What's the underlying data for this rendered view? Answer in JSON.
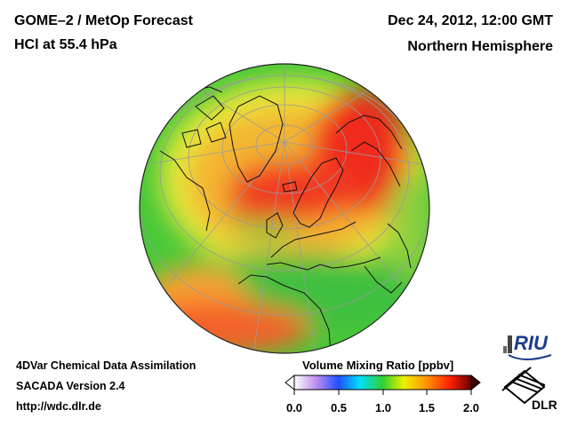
{
  "header": {
    "title": "GOME–2 / MetOp Forecast",
    "subtitle": "HCl at 55.4 hPa",
    "datetime": "Dec 24, 2012, 12:00 GMT",
    "region": "Northern Hemisphere"
  },
  "footer": {
    "line1": "4DVar Chemical Data Assimilation",
    "line2": "SACADA Version 2.4",
    "url": "http://wdc.dlr.de"
  },
  "colorbar": {
    "label": "Volume Mixing Ratio [ppbv]",
    "ticks": [
      "0.0",
      "0.5",
      "1.0",
      "1.5",
      "2.0"
    ],
    "range": [
      0.0,
      2.0
    ],
    "colors": [
      "#ffffff",
      "#b070f0",
      "#2050ff",
      "#00e0ff",
      "#30d030",
      "#f0f000",
      "#ff9000",
      "#ff2000",
      "#6a0000"
    ]
  },
  "logos": {
    "riu": "RIU",
    "dlr": "DLR"
  },
  "map": {
    "projection": "orthographic",
    "colors": {
      "green": "#48c838",
      "yellow": "#eeec38",
      "orange": "#f49a2a",
      "red": "#f02818",
      "coast": "#111111",
      "grid": "#9a9a9a"
    }
  }
}
